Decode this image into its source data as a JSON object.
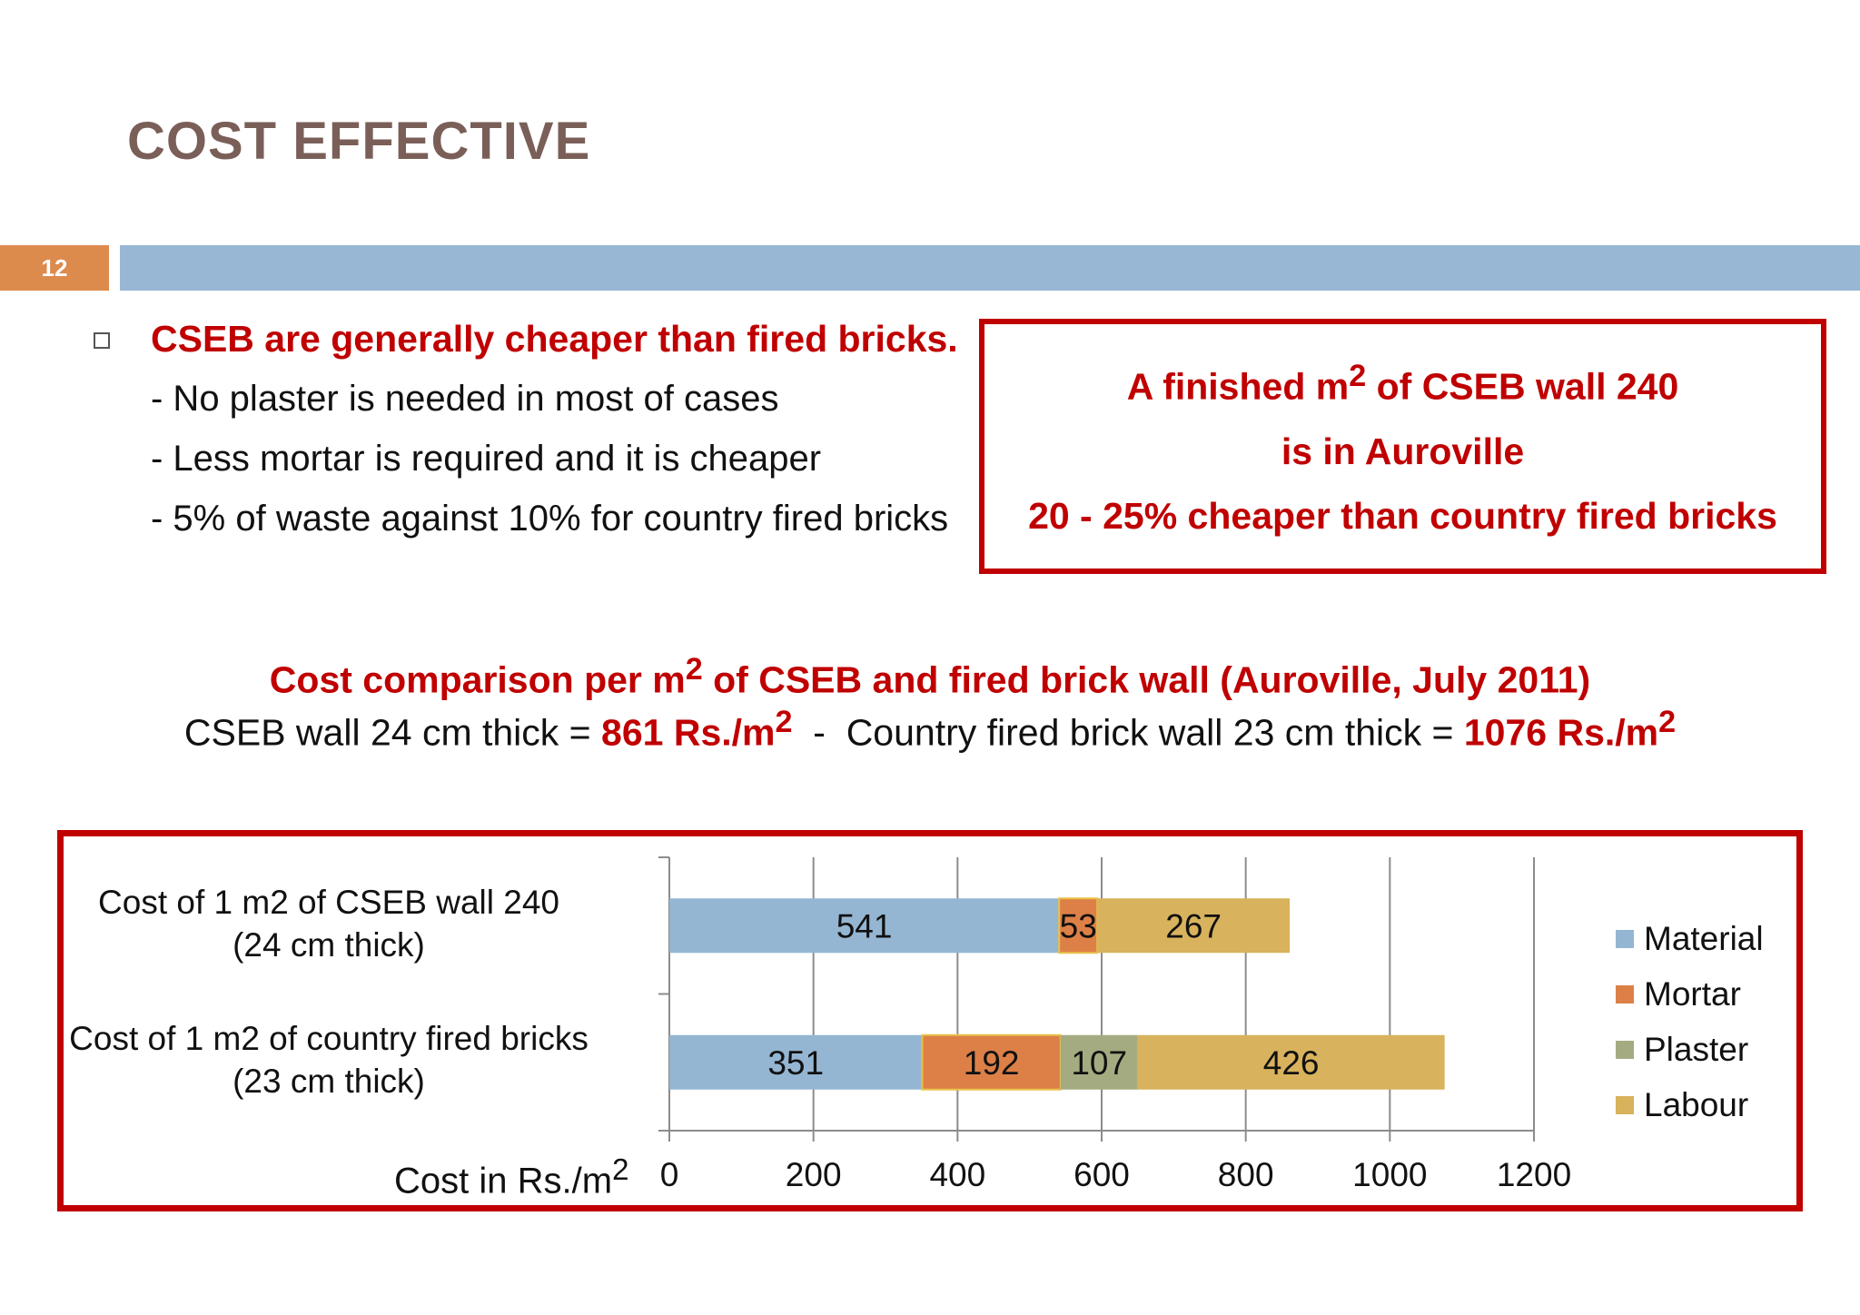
{
  "slide": {
    "title": "COST EFFECTIVE",
    "number": "12"
  },
  "bullets": {
    "main": "CSEB are generally cheaper than fired bricks.",
    "sub": [
      "- No plaster is needed in most of cases",
      "- Less mortar is required and it is cheaper",
      "- 5% of waste against 10% for country fired bricks"
    ]
  },
  "highlight": {
    "line1_pre": "A finished m",
    "line1_sup": "2",
    "line1_post": " of CSEB wall 240",
    "line2": "is in Auroville",
    "line3": "20 - 25% cheaper than country fired bricks"
  },
  "comparison": {
    "title_pre": "Cost comparison per m",
    "title_sup": "2",
    "title_post": " of CSEB and fired brick wall (Auroville, July 2011)",
    "cseb_label": "CSEB wall 24 cm thick = ",
    "cseb_value": "861 Rs./m",
    "sup": "2",
    "separator": "  -  ",
    "fired_label": "Country fired brick wall 23 cm thick = ",
    "fired_value": "1076 Rs./m"
  },
  "chart_data": {
    "type": "bar",
    "orientation": "horizontal",
    "stacked": true,
    "categories": [
      [
        "Cost of 1 m2 of CSEB wall 240",
        "(24 cm thick)"
      ],
      [
        "Cost of 1 m2 of country fired bricks",
        "(23 cm thick)"
      ]
    ],
    "series": [
      {
        "name": "Material",
        "values": [
          541,
          351
        ],
        "color": "#94b6d2"
      },
      {
        "name": "Mortar",
        "values": [
          53,
          192
        ],
        "color": "#dd8047"
      },
      {
        "name": "Plaster",
        "values": [
          0,
          107
        ],
        "color": "#a5ab81"
      },
      {
        "name": "Labour",
        "values": [
          267,
          426
        ],
        "color": "#d8b25c"
      }
    ],
    "xlabel": "Cost in Rs./m",
    "xlabel_sup": "2",
    "xlim": [
      0,
      1200
    ],
    "xticks": [
      0,
      200,
      400,
      600,
      800,
      1000,
      1200
    ],
    "grid": true,
    "legend": "right"
  }
}
